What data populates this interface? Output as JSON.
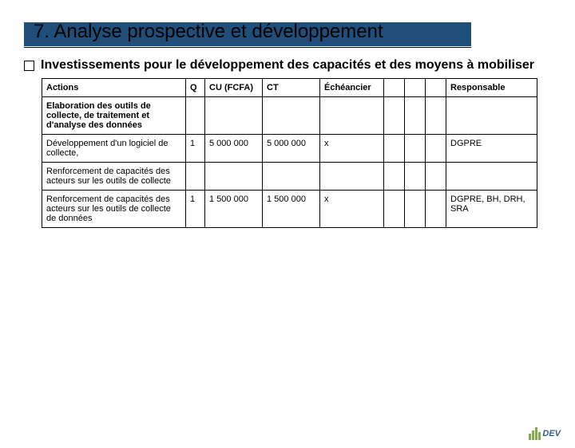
{
  "colors": {
    "title_band": "#1f4e79",
    "title_text": "#000000",
    "table_border": "#000000",
    "background": "#ffffff",
    "logo_green": "#7aa23c",
    "logo_text": "#1f4e79"
  },
  "title": "7. Analyse prospective et développement",
  "subtitle": "Investissements pour le développement des capacités et des moyens à mobiliser",
  "table": {
    "headers": {
      "actions": "Actions",
      "q": "Q",
      "cu": "CU (FCFA)",
      "ct": "CT",
      "echeancier": "Échéancier",
      "e2": "",
      "e3": "",
      "e4": "",
      "responsable": "Responsable"
    },
    "rows": [
      {
        "bold": true,
        "actions": "Elaboration des outils de collecte, de traitement et d'analyse des données",
        "q": "",
        "cu": "",
        "ct": "",
        "e1": "",
        "e2": "",
        "e3": "",
        "e4": "",
        "resp": ""
      },
      {
        "bold": false,
        "actions": "Développement d'un logiciel de collecte,",
        "q": "1",
        "cu": "5 000 000",
        "ct": "5 000 000",
        "e1": "x",
        "e2": "",
        "e3": "",
        "e4": "",
        "resp": "DGPRE"
      },
      {
        "bold": false,
        "actions": "Renforcement de capacités des acteurs sur les outils de collecte",
        "q": "",
        "cu": "",
        "ct": "",
        "e1": "",
        "e2": "",
        "e3": "",
        "e4": "",
        "resp": ""
      },
      {
        "bold": false,
        "actions": "Renforcement de capacités des acteurs sur les outils de collecte de données",
        "q": "1",
        "cu": "1 500 000",
        "ct": "1 500 000",
        "e1": "x",
        "e2": "",
        "e3": "",
        "e4": "",
        "resp": "DGPRE,  BH, DRH, SRA"
      }
    ]
  },
  "logo_text": "DEV"
}
